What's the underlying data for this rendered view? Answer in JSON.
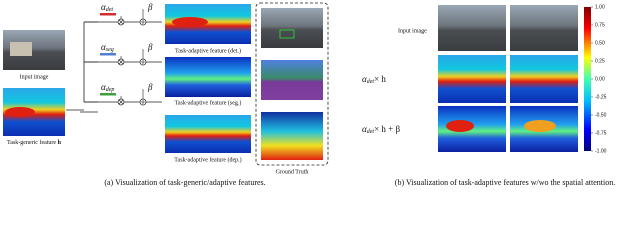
{
  "panel_a": {
    "input_label": "Input image",
    "generic_label": "Task-generic feature",
    "generic_symbol": "h",
    "alphas": [
      {
        "symbol": "α",
        "subscript": "det"
      },
      {
        "symbol": "α",
        "subscript": "seg"
      },
      {
        "symbol": "α",
        "subscript": "dep"
      }
    ],
    "beta": "β",
    "features": [
      "Task-adaptive feature (det.)",
      "Task-adaptive feature (seg.)",
      "Task-adaptive feature (dep.)"
    ],
    "ground_truth": "Ground Truth",
    "caption": "(a) Visualization of task-generic/adaptive features."
  },
  "panel_b": {
    "input_label": "Input image",
    "rows": [
      {
        "symbol": "α",
        "subscript": "det",
        "rest": "× h"
      },
      {
        "symbol": "α",
        "subscript": "det",
        "rest": "× h + β"
      }
    ],
    "colorbar_ticks": [
      "1.00",
      "0.75",
      "0.50",
      "0.25",
      "0.00",
      "-0.25",
      "-0.50",
      "-0.75",
      "-1.00"
    ],
    "caption": "(b) Visualization of task-adaptive features w/wo the spatial attention."
  }
}
